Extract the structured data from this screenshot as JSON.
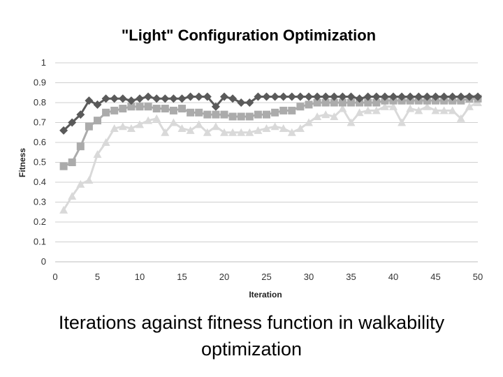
{
  "chart_data": {
    "type": "line",
    "title": "\"Light\" Configuration Optimization",
    "xlabel": "Iteration",
    "ylabel": "Fitness",
    "xlim": [
      0,
      50
    ],
    "ylim": [
      0,
      1
    ],
    "x_ticks": [
      "0",
      "5",
      "10",
      "15",
      "20",
      "25",
      "30",
      "35",
      "40",
      "45",
      "50"
    ],
    "y_ticks": [
      "0",
      "0.1",
      "0.2",
      "0.3",
      "0.4",
      "0.5",
      "0.6",
      "0.7",
      "0.8",
      "0.9",
      "1"
    ],
    "grid": true,
    "legend": "none",
    "x": [
      1,
      2,
      3,
      4,
      5,
      6,
      7,
      8,
      9,
      10,
      11,
      12,
      13,
      14,
      15,
      16,
      17,
      18,
      19,
      20,
      21,
      22,
      23,
      24,
      25,
      26,
      27,
      28,
      29,
      30,
      31,
      32,
      33,
      34,
      35,
      36,
      37,
      38,
      39,
      40,
      41,
      42,
      43,
      44,
      45,
      46,
      47,
      48,
      49,
      50
    ],
    "series": [
      {
        "marker": "diamond",
        "color": "#5a5a5a",
        "values": [
          0.66,
          0.7,
          0.74,
          0.81,
          0.79,
          0.82,
          0.82,
          0.82,
          0.81,
          0.82,
          0.83,
          0.82,
          0.82,
          0.82,
          0.82,
          0.83,
          0.83,
          0.83,
          0.78,
          0.83,
          0.82,
          0.8,
          0.8,
          0.83,
          0.83,
          0.83,
          0.83,
          0.83,
          0.83,
          0.83,
          0.83,
          0.83,
          0.83,
          0.83,
          0.83,
          0.82,
          0.83,
          0.83,
          0.83,
          0.83,
          0.83,
          0.83,
          0.83,
          0.83,
          0.83,
          0.83,
          0.83,
          0.83,
          0.83,
          0.83
        ]
      },
      {
        "marker": "square",
        "color": "#ababab",
        "values": [
          0.48,
          0.5,
          0.58,
          0.68,
          0.71,
          0.75,
          0.76,
          0.77,
          0.78,
          0.78,
          0.78,
          0.77,
          0.77,
          0.76,
          0.77,
          0.75,
          0.75,
          0.74,
          0.74,
          0.74,
          0.73,
          0.73,
          0.73,
          0.74,
          0.74,
          0.75,
          0.76,
          0.76,
          0.78,
          0.79,
          0.8,
          0.8,
          0.8,
          0.8,
          0.8,
          0.8,
          0.8,
          0.8,
          0.81,
          0.81,
          0.81,
          0.81,
          0.81,
          0.81,
          0.81,
          0.81,
          0.81,
          0.81,
          0.82,
          0.82
        ]
      },
      {
        "marker": "triangle",
        "color": "#d9d9d9",
        "values": [
          0.26,
          0.33,
          0.39,
          0.41,
          0.54,
          0.6,
          0.67,
          0.68,
          0.67,
          0.69,
          0.71,
          0.72,
          0.65,
          0.7,
          0.67,
          0.66,
          0.69,
          0.65,
          0.68,
          0.65,
          0.65,
          0.65,
          0.65,
          0.66,
          0.67,
          0.68,
          0.67,
          0.65,
          0.67,
          0.7,
          0.73,
          0.74,
          0.73,
          0.77,
          0.7,
          0.75,
          0.76,
          0.76,
          0.78,
          0.78,
          0.7,
          0.77,
          0.76,
          0.78,
          0.76,
          0.76,
          0.76,
          0.72,
          0.78,
          0.8
        ]
      }
    ]
  },
  "caption": {
    "line1": "Iterations against fitness function in walkability",
    "line2": "optimization"
  }
}
